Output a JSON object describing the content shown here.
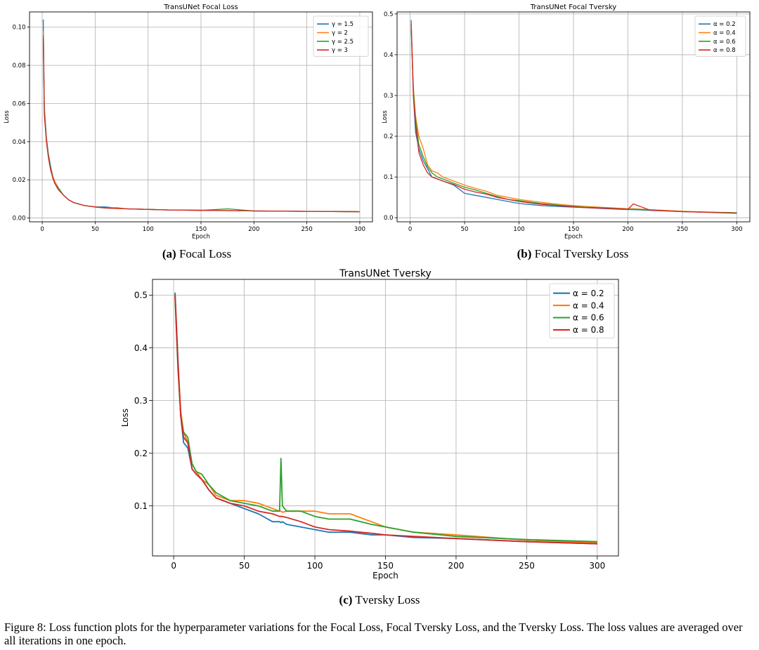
{
  "figure_caption": "Figure 8: Loss function plots for the hyperparameter variations for the Focal Loss, Focal Tversky Loss, and the Tversky Loss. The loss values are averaged over all iterations in one epoch.",
  "captions": [
    {
      "label": "(a)",
      "text": "Focal Loss"
    },
    {
      "label": "(b)",
      "text": "Focal Tversky Loss"
    },
    {
      "label": "(c)",
      "text": "Tversky Loss"
    }
  ],
  "chart_data": [
    {
      "type": "line",
      "title": "TransUNet Focal Loss",
      "xlabel": "Epoch",
      "ylabel": "Loss",
      "xlim": [
        -12,
        312
      ],
      "ylim": [
        -0.002,
        0.108
      ],
      "xticks": [
        0,
        50,
        100,
        150,
        200,
        250,
        300
      ],
      "yticks": [
        0.0,
        0.02,
        0.04,
        0.06,
        0.08,
        0.1
      ],
      "ytick_labels": [
        "0.00",
        "0.02",
        "0.04",
        "0.06",
        "0.08",
        "0.10"
      ],
      "grid": true,
      "legend": "top-right",
      "x": [
        1,
        2,
        4,
        6,
        8,
        10,
        12,
        15,
        20,
        25,
        30,
        40,
        50,
        60,
        70,
        80,
        100,
        120,
        150,
        175,
        200,
        250,
        300
      ],
      "series": [
        {
          "name": "γ = 1.5",
          "color": "#1f77b4",
          "values": [
            0.104,
            0.058,
            0.042,
            0.033,
            0.027,
            0.022,
            0.019,
            0.016,
            0.012,
            0.0095,
            0.008,
            0.0065,
            0.0058,
            0.0058,
            0.0052,
            0.0048,
            0.0045,
            0.0042,
            0.0041,
            0.0039,
            0.0037,
            0.0035,
            0.0033
          ]
        },
        {
          "name": "γ = 2",
          "color": "#ff7f0e",
          "values": [
            0.098,
            0.056,
            0.041,
            0.032,
            0.026,
            0.022,
            0.019,
            0.016,
            0.012,
            0.0095,
            0.008,
            0.0065,
            0.0058,
            0.0052,
            0.0055,
            0.0048,
            0.0045,
            0.0042,
            0.004,
            0.0039,
            0.0037,
            0.0035,
            0.0033
          ]
        },
        {
          "name": "γ = 2.5",
          "color": "#2ca02c",
          "values": [
            0.096,
            0.055,
            0.04,
            0.032,
            0.026,
            0.021,
            0.018,
            0.016,
            0.012,
            0.0095,
            0.008,
            0.0065,
            0.0058,
            0.0052,
            0.005,
            0.0048,
            0.0045,
            0.0042,
            0.004,
            0.0048,
            0.0037,
            0.0035,
            0.0033
          ]
        },
        {
          "name": "γ = 3",
          "color": "#d62728",
          "values": [
            0.094,
            0.054,
            0.04,
            0.031,
            0.025,
            0.021,
            0.018,
            0.015,
            0.012,
            0.0095,
            0.008,
            0.0065,
            0.0058,
            0.0052,
            0.005,
            0.0048,
            0.0045,
            0.0042,
            0.004,
            0.0039,
            0.0037,
            0.0035,
            0.0033
          ]
        }
      ]
    },
    {
      "type": "line",
      "title": "TransUNet Focal Tversky",
      "xlabel": "Epoch",
      "ylabel": "Loss",
      "xlim": [
        -12,
        312
      ],
      "ylim": [
        -0.01,
        0.505
      ],
      "xticks": [
        0,
        50,
        100,
        150,
        200,
        250,
        300
      ],
      "yticks": [
        0.0,
        0.1,
        0.2,
        0.3,
        0.4,
        0.5
      ],
      "ytick_labels": [
        "0.0",
        "0.1",
        "0.2",
        "0.3",
        "0.4",
        "0.5"
      ],
      "grid": true,
      "legend": "top-right",
      "x": [
        1,
        3,
        5,
        8,
        12,
        16,
        20,
        25,
        30,
        40,
        50,
        60,
        70,
        80,
        90,
        100,
        120,
        140,
        160,
        180,
        200,
        205,
        220,
        250,
        300
      ],
      "series": [
        {
          "name": "α = 0.2",
          "color": "#1f77b4",
          "values": [
            0.485,
            0.3,
            0.21,
            0.17,
            0.14,
            0.12,
            0.1,
            0.095,
            0.09,
            0.08,
            0.06,
            0.055,
            0.05,
            0.045,
            0.04,
            0.035,
            0.03,
            0.027,
            0.025,
            0.022,
            0.02,
            0.02,
            0.018,
            0.015,
            0.012
          ]
        },
        {
          "name": "α = 0.4",
          "color": "#ff7f0e",
          "values": [
            0.47,
            0.32,
            0.25,
            0.2,
            0.17,
            0.13,
            0.115,
            0.11,
            0.1,
            0.09,
            0.08,
            0.072,
            0.065,
            0.055,
            0.05,
            0.045,
            0.038,
            0.032,
            0.028,
            0.025,
            0.022,
            0.022,
            0.02,
            0.016,
            0.012
          ]
        },
        {
          "name": "α = 0.6",
          "color": "#2ca02c",
          "values": [
            0.46,
            0.31,
            0.24,
            0.18,
            0.15,
            0.125,
            0.11,
            0.1,
            0.095,
            0.085,
            0.075,
            0.068,
            0.06,
            0.052,
            0.045,
            0.042,
            0.035,
            0.03,
            0.026,
            0.024,
            0.021,
            0.021,
            0.019,
            0.015,
            0.012
          ]
        },
        {
          "name": "α = 0.8",
          "color": "#d62728",
          "values": [
            0.475,
            0.3,
            0.23,
            0.16,
            0.13,
            0.11,
            0.1,
            0.095,
            0.09,
            0.082,
            0.07,
            0.063,
            0.058,
            0.05,
            0.045,
            0.04,
            0.033,
            0.029,
            0.025,
            0.023,
            0.021,
            0.034,
            0.019,
            0.015,
            0.011
          ]
        }
      ]
    },
    {
      "type": "line",
      "title": "TransUNet Tversky",
      "xlabel": "Epoch",
      "ylabel": "Loss",
      "xlim": [
        -15,
        315
      ],
      "ylim": [
        0.005,
        0.53
      ],
      "xticks": [
        0,
        50,
        100,
        150,
        200,
        250,
        300
      ],
      "yticks": [
        0.1,
        0.2,
        0.3,
        0.4,
        0.5
      ],
      "ytick_labels": [
        "0.1",
        "0.2",
        "0.3",
        "0.4",
        "0.5"
      ],
      "grid": true,
      "legend": "top-right",
      "x": [
        1,
        3,
        5,
        7,
        10,
        13,
        16,
        20,
        25,
        30,
        40,
        50,
        60,
        70,
        75,
        76,
        77,
        80,
        90,
        100,
        110,
        125,
        140,
        150,
        170,
        200,
        250,
        300
      ],
      "series": [
        {
          "name": "α = 0.2",
          "color": "#1f77b4",
          "values": [
            0.505,
            0.38,
            0.27,
            0.22,
            0.21,
            0.17,
            0.16,
            0.15,
            0.13,
            0.115,
            0.105,
            0.095,
            0.085,
            0.07,
            0.07,
            0.068,
            0.07,
            0.065,
            0.06,
            0.055,
            0.05,
            0.05,
            0.045,
            0.045,
            0.04,
            0.038,
            0.032,
            0.028
          ]
        },
        {
          "name": "α = 0.4",
          "color": "#ff7f0e",
          "values": [
            0.5,
            0.37,
            0.28,
            0.24,
            0.22,
            0.18,
            0.165,
            0.15,
            0.14,
            0.12,
            0.11,
            0.11,
            0.105,
            0.095,
            0.09,
            0.09,
            0.088,
            0.09,
            0.09,
            0.09,
            0.085,
            0.085,
            0.07,
            0.06,
            0.05,
            0.045,
            0.035,
            0.03
          ]
        },
        {
          "name": "α = 0.6",
          "color": "#2ca02c",
          "values": [
            0.495,
            0.36,
            0.27,
            0.24,
            0.23,
            0.18,
            0.165,
            0.16,
            0.14,
            0.125,
            0.11,
            0.105,
            0.1,
            0.09,
            0.09,
            0.19,
            0.1,
            0.09,
            0.09,
            0.08,
            0.075,
            0.075,
            0.065,
            0.06,
            0.05,
            0.042,
            0.036,
            0.032
          ]
        },
        {
          "name": "α = 0.8",
          "color": "#d62728",
          "values": [
            0.5,
            0.37,
            0.27,
            0.23,
            0.22,
            0.17,
            0.16,
            0.15,
            0.13,
            0.115,
            0.105,
            0.1,
            0.09,
            0.085,
            0.08,
            0.08,
            0.08,
            0.078,
            0.07,
            0.06,
            0.055,
            0.052,
            0.048,
            0.045,
            0.042,
            0.038,
            0.032,
            0.028
          ]
        }
      ]
    }
  ]
}
